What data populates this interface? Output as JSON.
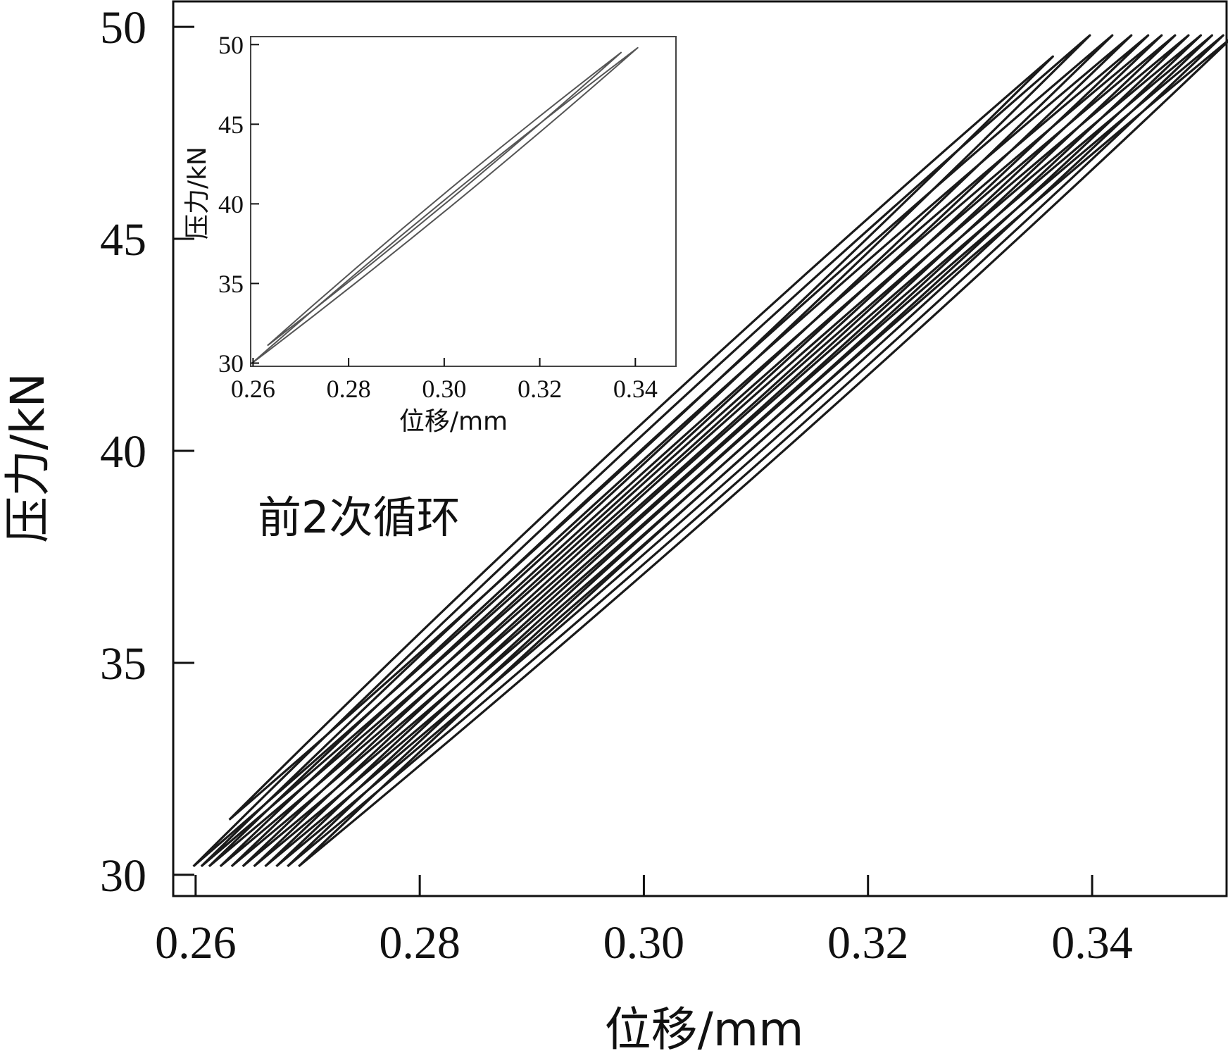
{
  "chart_data": [
    {
      "type": "line",
      "role": "main",
      "xlabel": "位移/mm",
      "ylabel": "压力/kN",
      "xlim": [
        0.258,
        0.352
      ],
      "ylim": [
        29.5,
        50.6
      ],
      "xticks": [
        0.26,
        0.28,
        0.3,
        0.32,
        0.34
      ],
      "xtick_labels": [
        "0.26",
        "0.28",
        "0.30",
        "0.32",
        "0.34"
      ],
      "yticks": [
        30,
        35,
        40,
        45,
        50
      ],
      "ytick_labels": [
        "30",
        "35",
        "40",
        "45",
        "50"
      ],
      "annotation": "前2次循环",
      "grid": false,
      "line_color": "#1a1a1a",
      "series": [
        {
          "x": [
            0.263,
            0.3365
          ],
          "y": [
            31.3,
            49.3
          ]
        },
        {
          "x": [
            0.2598,
            0.3398
          ],
          "y": [
            30.2,
            49.8
          ]
        },
        {
          "x": [
            0.2605,
            0.3418
          ],
          "y": [
            30.2,
            49.8
          ]
        },
        {
          "x": [
            0.2612,
            0.3435
          ],
          "y": [
            30.2,
            49.8
          ]
        },
        {
          "x": [
            0.2622,
            0.345
          ],
          "y": [
            30.2,
            49.8
          ]
        },
        {
          "x": [
            0.2632,
            0.3462
          ],
          "y": [
            30.2,
            49.8
          ]
        },
        {
          "x": [
            0.2642,
            0.3474
          ],
          "y": [
            30.2,
            49.8
          ]
        },
        {
          "x": [
            0.2652,
            0.3486
          ],
          "y": [
            30.2,
            49.8
          ]
        },
        {
          "x": [
            0.2662,
            0.3497
          ],
          "y": [
            30.2,
            49.8
          ]
        },
        {
          "x": [
            0.2672,
            0.3507
          ],
          "y": [
            30.2,
            49.8
          ]
        },
        {
          "x": [
            0.2682,
            0.3517
          ],
          "y": [
            30.2,
            49.8
          ]
        },
        {
          "x": [
            0.2692,
            0.3527
          ],
          "y": [
            30.2,
            49.8
          ]
        }
      ]
    },
    {
      "type": "line",
      "role": "inset",
      "xlabel": "位移/mm",
      "ylabel": "压力/kN",
      "xlim": [
        0.2595,
        0.3485
      ],
      "ylim": [
        29.8,
        50.5
      ],
      "xticks": [
        0.26,
        0.28,
        0.3,
        0.32,
        0.34
      ],
      "xtick_labels": [
        "0.26",
        "0.28",
        "0.30",
        "0.32",
        "0.34"
      ],
      "yticks": [
        30,
        35,
        40,
        45,
        50
      ],
      "ytick_labels": [
        "30",
        "35",
        "40",
        "45",
        "50"
      ],
      "grid": false,
      "line_color": "#555555",
      "series": [
        {
          "x": [
            0.263,
            0.337
          ],
          "y": [
            31.1,
            49.5
          ]
        },
        {
          "x": [
            0.2598,
            0.3405
          ],
          "y": [
            30.0,
            49.8
          ]
        }
      ]
    }
  ]
}
